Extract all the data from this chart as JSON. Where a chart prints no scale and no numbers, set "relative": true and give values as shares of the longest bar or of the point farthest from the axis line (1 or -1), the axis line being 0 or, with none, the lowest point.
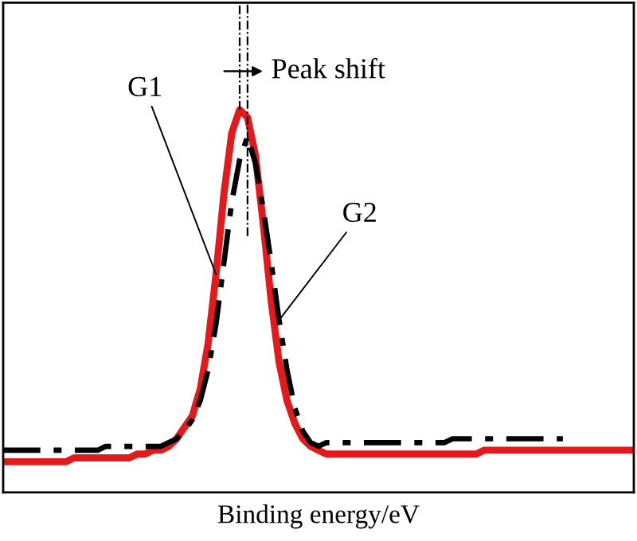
{
  "chart_data": {
    "type": "line",
    "relative": true,
    "xlabel": "Binding energy/eV",
    "categories": [
      null,
      null,
      null,
      null,
      null,
      null,
      null,
      null,
      null,
      null,
      null,
      null,
      null,
      null,
      null,
      null,
      null,
      null,
      null,
      null,
      null,
      null,
      null,
      null,
      null,
      null,
      null,
      null,
      null,
      null,
      null,
      null,
      null,
      null,
      null,
      null,
      null,
      null,
      null,
      null,
      null,
      null,
      null,
      null,
      null,
      null,
      null,
      null,
      null,
      null,
      null,
      null,
      null,
      null,
      null,
      null,
      null,
      null,
      null,
      null,
      null,
      null,
      null,
      null,
      null,
      null,
      null,
      null,
      null,
      null,
      null,
      null,
      null,
      null,
      null,
      null,
      null,
      null,
      null,
      null,
      null
    ],
    "series": [
      {
        "color": "#e31a1c",
        "line_style": "solid",
        "values": [
          0.08,
          0.08,
          0.08,
          0.08,
          0.08,
          0.08,
          0.08,
          0.08,
          0.08,
          0.09,
          0.09,
          0.09,
          0.09,
          0.09,
          0.09,
          0.09,
          0.09,
          0.1,
          0.1,
          0.11,
          0.11,
          0.12,
          0.14,
          0.17,
          0.2,
          0.27,
          0.39,
          0.57,
          0.78,
          0.94,
          1,
          0.98,
          0.88,
          0.7,
          0.5,
          0.34,
          0.24,
          0.18,
          0.14,
          0.12,
          0.11,
          0.1,
          0.1,
          0.1,
          0.1,
          0.1,
          0.1,
          0.1,
          0.1,
          0.1,
          0.1,
          0.1,
          0.1,
          0.1,
          0.1,
          0.1,
          0.1,
          0.1,
          0.1,
          0.1,
          0.1,
          0.11,
          0.11,
          0.11,
          0.11,
          0.11,
          0.11,
          0.11,
          0.11,
          0.11,
          0.11,
          0.11,
          0.11,
          0.11,
          0.11,
          0.11,
          0.11,
          0.11,
          0.11,
          0.11,
          0.11
        ]
      },
      {
        "color": "#000000",
        "line_style": "dashed",
        "values": [
          0.11,
          0.11,
          0.11,
          0.11,
          0.11,
          0.11,
          0.11,
          0.11,
          0.11,
          0.11,
          0.11,
          0.11,
          0.11,
          0.12,
          0.12,
          0.12,
          0.12,
          0.12,
          0.12,
          0.12,
          0.12,
          0.13,
          0.14,
          0.16,
          0.19,
          0.24,
          0.32,
          0.44,
          0.6,
          0.76,
          0.87,
          0.93,
          0.86,
          0.74,
          0.6,
          0.45,
          0.32,
          0.22,
          0.16,
          0.13,
          0.12,
          0.13,
          0.13,
          0.13,
          0.13,
          0.13,
          0.13,
          0.13,
          0.13,
          0.13,
          0.13,
          0.13,
          0.13,
          0.13,
          0.13,
          0.13,
          0.13,
          0.14,
          0.14,
          0.14,
          0.14,
          0.14,
          0.14,
          0.14,
          0.14,
          0.14,
          0.14,
          0.14,
          0.14,
          0.14,
          0.14,
          0.14,
          null,
          null,
          null,
          null,
          null,
          null,
          null,
          null,
          null
        ]
      }
    ],
    "annotations": [
      "Peak shift",
      "G1",
      "G2"
    ],
    "grid": false,
    "marker": "none"
  }
}
